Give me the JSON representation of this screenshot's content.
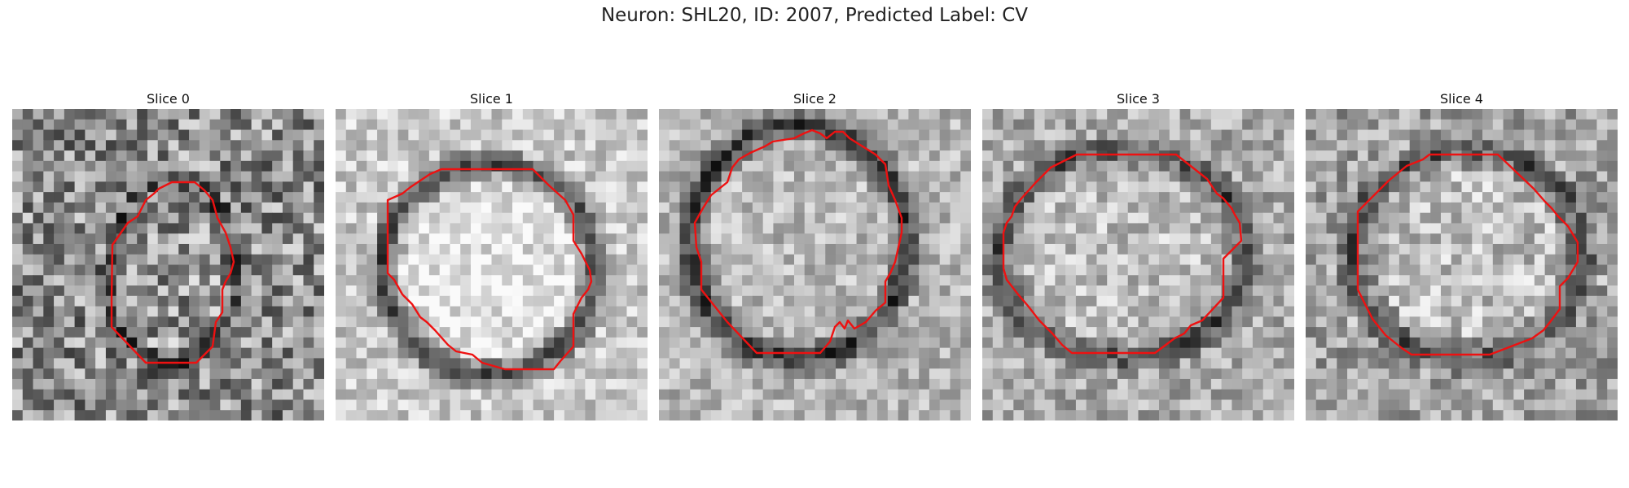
{
  "figure": {
    "suptitle": "Neuron: SHL20, ID: 2007, Predicted Label: CV"
  },
  "slices": [
    {
      "title": "Slice 0"
    },
    {
      "title": "Slice 1"
    },
    {
      "title": "Slice 2"
    },
    {
      "title": "Slice 3"
    },
    {
      "title": "Slice 4"
    }
  ],
  "contour_color": "#ee1111"
}
